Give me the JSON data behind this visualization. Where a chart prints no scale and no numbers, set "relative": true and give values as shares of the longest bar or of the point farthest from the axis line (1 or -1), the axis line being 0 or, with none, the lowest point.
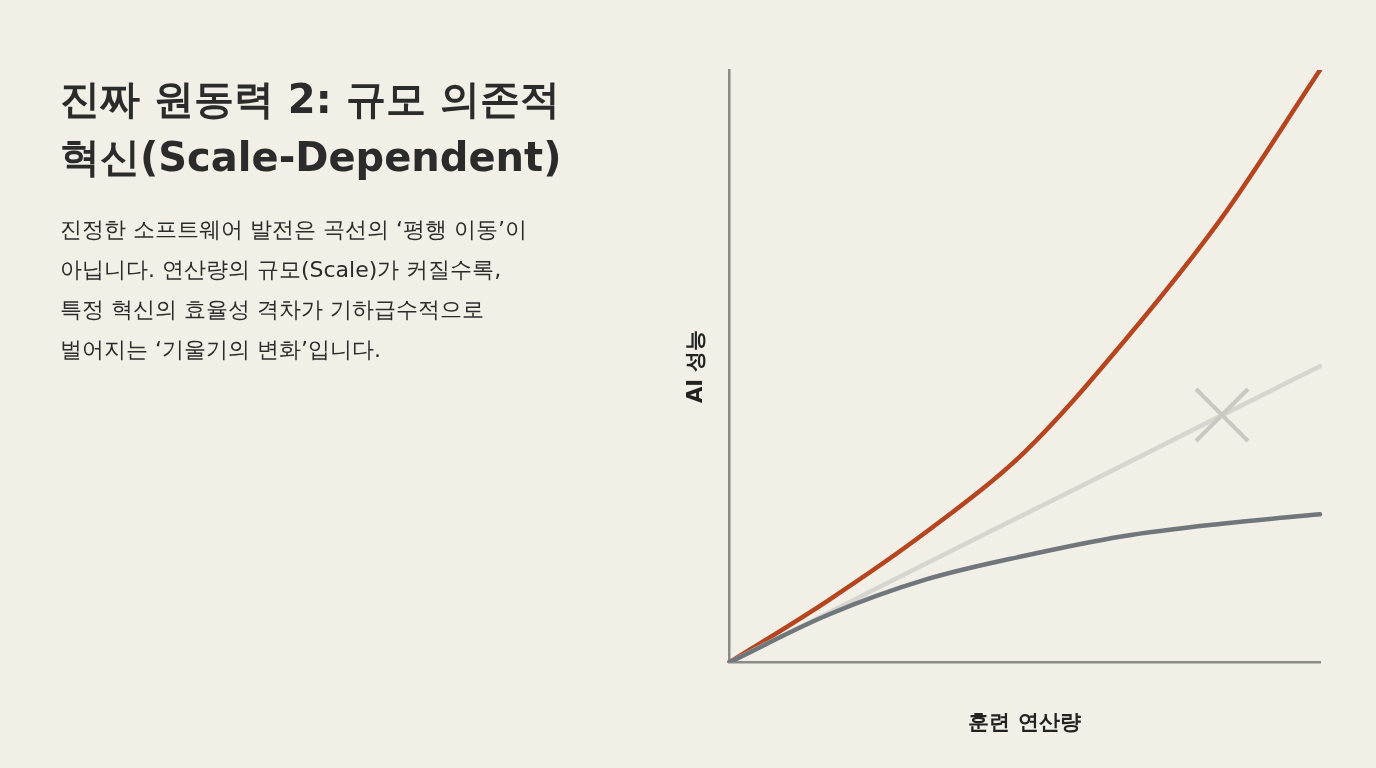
{
  "chart_data": {
    "type": "line",
    "title": "진짜 원동력 2: 규모 의존적\n혁신(Scale-Dependent)",
    "subtitle": "진정한 소프트웨어 발전은 곡선의 ‘평행 이동’이\n아닙니다. 연산량의 규모(Scale)가 커질수록,\n특정 혁신의 효율성 격차가 기하급수적으로\n벌어지는 ‘기울기의 변화’입니다.",
    "xlabel": "훈련 연산량",
    "ylabel": "AI 성능",
    "relative": true,
    "categories": [
      null,
      null,
      null,
      null,
      null,
      null,
      null
    ],
    "series": [
      {
        "color": "#b5441f",
        "values": [
          0,
          0.104,
          0.22,
          0.355,
          0.54,
          0.75,
          1
        ]
      },
      {
        "color": "#d6d5d0",
        "values": [
          0,
          0.083,
          0.167,
          0.25,
          0.333,
          0.417,
          0.5
        ]
      },
      {
        "color": "#6f767c",
        "values": [
          0,
          0.08,
          0.14,
          0.18,
          0.213,
          0.234,
          0.25
        ]
      }
    ],
    "grid": false,
    "legend": false,
    "marker": "none",
    "line_style": "solid"
  }
}
